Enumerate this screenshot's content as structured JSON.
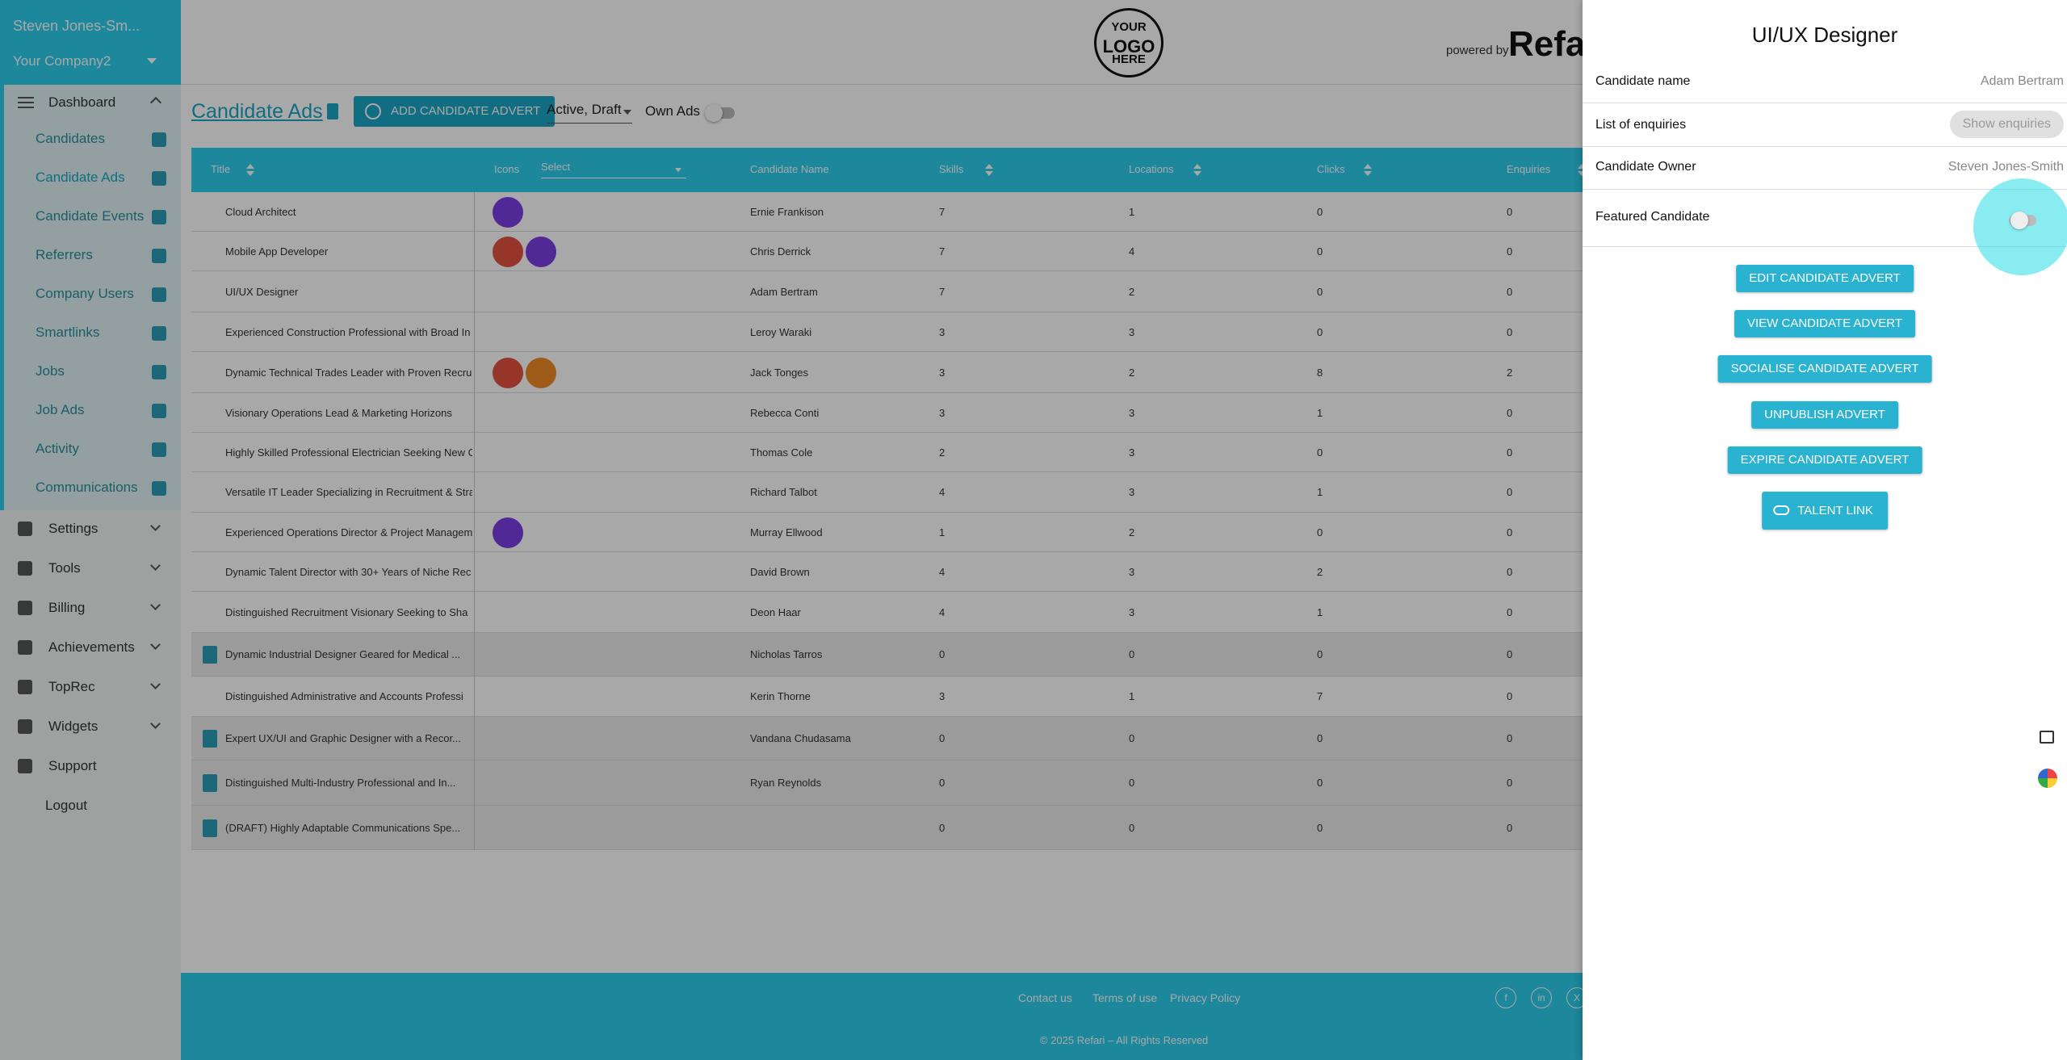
{
  "header": {
    "user_name": "Steven Jones-Sm...",
    "company": "Your Company2",
    "logo": [
      "YOUR",
      "LOGO",
      "HERE"
    ],
    "powered_by": "powered by",
    "brand": "Refari"
  },
  "sidebar": {
    "dashboard": "Dashboard",
    "submenu": [
      "Candidates",
      "Candidate Ads",
      "Candidate Events",
      "Referrers",
      "Company Users",
      "Smartlinks",
      "Jobs",
      "Job Ads",
      "Activity",
      "Communications"
    ],
    "menu": [
      "Settings",
      "Tools",
      "Billing",
      "Achievements",
      "TopRec",
      "Widgets",
      "Support",
      "Logout"
    ]
  },
  "toolbar": {
    "title": "Candidate Ads",
    "add_button": "ADD CANDIDATE ADVERT",
    "status_filter": "Active, Draft",
    "own_ads": "Own Ads"
  },
  "table": {
    "columns": [
      "Title",
      "Icons",
      "Candidate Name",
      "Skills",
      "Locations",
      "Clicks",
      "Enquiries"
    ],
    "icons_filter_placeholder": "Select",
    "rows": [
      [
        "Cloud Architect",
        "Ernie Frankison",
        7,
        1,
        0,
        0
      ],
      [
        "Mobile App Developer",
        "Chris Derrick",
        7,
        4,
        0,
        0
      ],
      [
        "UI/UX Designer",
        "Adam Bertram",
        7,
        2,
        0,
        0
      ],
      [
        "Experienced Construction Professional with Broad In",
        "Leroy Waraki",
        3,
        3,
        0,
        0
      ],
      [
        "Dynamic Technical Trades Leader with Proven Recru",
        "Jack Tonges",
        3,
        2,
        8,
        2
      ],
      [
        "Visionary Operations Lead & Marketing Horizons",
        "Rebecca Conti",
        3,
        3,
        1,
        0
      ],
      [
        "Highly Skilled Professional Electrician Seeking New C",
        "Thomas Cole",
        2,
        3,
        0,
        0
      ],
      [
        "Versatile IT Leader Specializing in Recruitment & Stra",
        "Richard Talbot",
        4,
        3,
        1,
        0
      ],
      [
        "Experienced Operations Director & Project Managem",
        "Murray Ellwood",
        1,
        2,
        0,
        0
      ],
      [
        "Dynamic Talent Director with 30+ Years of Niche Rec",
        "David Brown",
        4,
        3,
        2,
        0
      ],
      [
        "Distinguished Recruitment Visionary Seeking to Sha",
        "Deon Haar",
        4,
        3,
        1,
        0
      ],
      [
        "Dynamic Industrial Designer Geared for Medical ...",
        "Nicholas Tarros",
        0,
        0,
        0,
        0
      ],
      [
        "Distinguished Administrative and Accounts Professi",
        "Kerin Thorne",
        3,
        1,
        7,
        0
      ],
      [
        "Expert UX/UI and Graphic Designer with a Recor...",
        "Vandana Chudasama",
        0,
        0,
        0,
        0
      ],
      [
        "Distinguished Multi-Industry Professional and In...",
        "Ryan Reynolds",
        0,
        0,
        0,
        0
      ],
      [
        "(DRAFT) Highly Adaptable Communications Spe...",
        null,
        0,
        0,
        0,
        0
      ]
    ]
  },
  "footer": {
    "links": [
      "Contact us",
      "Terms of use",
      "Privacy Policy"
    ],
    "social": [
      "f",
      "in",
      "X"
    ],
    "copyright": "© 2025 Refari – All Rights Reserved"
  },
  "panel": {
    "title": "UI/UX Designer",
    "candidate_name": {
      "label": "Candidate name",
      "value": "Adam Bertram"
    },
    "enquiries": {
      "label": "List of enquiries",
      "button": "Show enquiries"
    },
    "owner": {
      "label": "Candidate Owner",
      "value": "Steven Jones-Smith"
    },
    "featured": {
      "label": "Featured Candidate"
    },
    "actions": [
      "EDIT CANDIDATE ADVERT",
      "VIEW CANDIDATE ADVERT",
      "SOCIALISE CANDIDATE ADVERT",
      "UNPUBLISH ADVERT",
      "EXPIRE CANDIDATE ADVERT",
      "TALENT LINK"
    ]
  }
}
